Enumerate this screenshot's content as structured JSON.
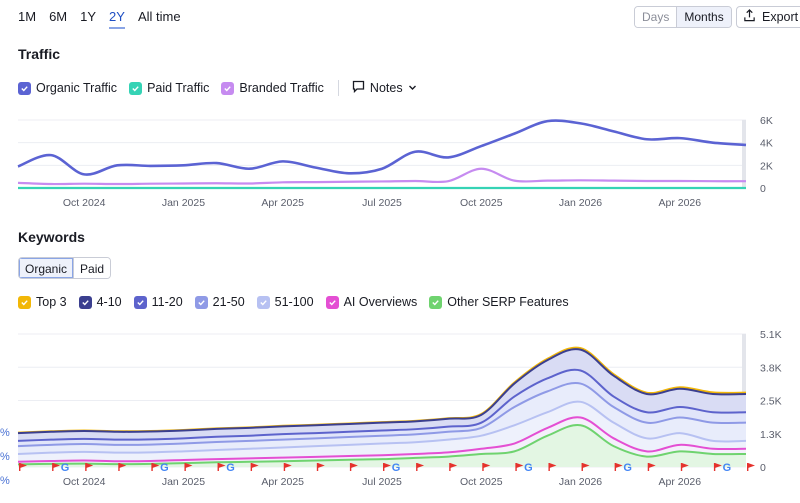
{
  "period_tabs": [
    {
      "label": "1M"
    },
    {
      "label": "6M"
    },
    {
      "label": "1Y"
    },
    {
      "label": "2Y",
      "active": true
    },
    {
      "label": "All time"
    }
  ],
  "view_toggle": {
    "days": "Days",
    "months": "Months"
  },
  "export_label": "Export",
  "traffic": {
    "title": "Traffic",
    "legend": [
      {
        "label": "Organic Traffic",
        "color": "#5b63d3"
      },
      {
        "label": "Paid Traffic",
        "color": "#35d3b5"
      },
      {
        "label": "Branded Traffic",
        "color": "#c68bf0"
      }
    ],
    "notes_label": "Notes"
  },
  "keywords": {
    "title": "Keywords",
    "tabs": {
      "organic": "Organic",
      "paid": "Paid"
    },
    "legend": [
      {
        "label": "Top 3",
        "color": "#f2b707"
      },
      {
        "label": "4-10",
        "color": "#3b3f8f"
      },
      {
        "label": "11-20",
        "color": "#5d63cc"
      },
      {
        "label": "21-50",
        "color": "#8f9ae6"
      },
      {
        "label": "51-100",
        "color": "#b7c1f2"
      },
      {
        "label": "AI Overviews",
        "color": "#e44fd3"
      },
      {
        "label": "Other SERP Features",
        "color": "#6fd36f"
      }
    ]
  },
  "chart_data": [
    {
      "type": "line",
      "title": "Traffic",
      "x": [
        "2024-08",
        "2024-09",
        "2024-10",
        "2024-11",
        "2024-12",
        "2025-01",
        "2025-02",
        "2025-03",
        "2025-04",
        "2025-05",
        "2025-06",
        "2025-07",
        "2025-08",
        "2025-09",
        "2025-10",
        "2025-11",
        "2025-12",
        "2026-01",
        "2026-02",
        "2026-03",
        "2026-04",
        "2026-05",
        "2026-06"
      ],
      "x_tick_labels": [
        "Oct 2024",
        "Jan 2025",
        "Apr 2025",
        "Jul 2025",
        "Oct 2025",
        "Jan 2026",
        "Apr 2026"
      ],
      "y_tick_labels": [
        "6K",
        "4K",
        "2K",
        "0"
      ],
      "ylim": [
        0,
        6000
      ],
      "series": [
        {
          "name": "Organic Traffic",
          "color": "#5b63d3",
          "values": [
            1900,
            2900,
            1200,
            2000,
            1950,
            2000,
            2200,
            1700,
            2350,
            1800,
            1300,
            1700,
            3200,
            2700,
            3700,
            4800,
            5900,
            5700,
            5000,
            4300,
            4400,
            4000,
            3800
          ]
        },
        {
          "name": "Paid Traffic",
          "color": "#35d3b5",
          "values": [
            0,
            0,
            0,
            0,
            0,
            0,
            0,
            0,
            0,
            0,
            0,
            0,
            0,
            0,
            0,
            0,
            0,
            0,
            0,
            0,
            0,
            0,
            0
          ]
        },
        {
          "name": "Branded Traffic",
          "color": "#c68bf0",
          "values": [
            450,
            350,
            380,
            350,
            380,
            400,
            420,
            400,
            500,
            520,
            550,
            580,
            620,
            600,
            1700,
            650,
            650,
            680,
            650,
            620,
            620,
            600,
            600
          ]
        }
      ]
    },
    {
      "type": "area",
      "title": "Keywords",
      "x": [
        "2024-08",
        "2024-09",
        "2024-10",
        "2024-11",
        "2024-12",
        "2025-01",
        "2025-02",
        "2025-03",
        "2025-04",
        "2025-05",
        "2025-06",
        "2025-07",
        "2025-08",
        "2025-09",
        "2025-10",
        "2025-11",
        "2025-12",
        "2026-01",
        "2026-02",
        "2026-03",
        "2026-04",
        "2026-05",
        "2026-06"
      ],
      "x_tick_labels": [
        "Oct 2024",
        "Jan 2025",
        "Apr 2025",
        "Jul 2025",
        "Oct 2025",
        "Jan 2026",
        "Apr 2026"
      ],
      "y_tick_labels": [
        "5.1K",
        "3.8K",
        "2.5K",
        "1.3K",
        "0"
      ],
      "ylim": [
        0,
        5100
      ],
      "stacked_cumulative": true,
      "series": [
        {
          "name": "Other SERP Features",
          "color": "#6fd36f",
          "values": [
            100,
            120,
            130,
            110,
            120,
            150,
            180,
            200,
            220,
            250,
            280,
            300,
            350,
            400,
            500,
            600,
            1200,
            1600,
            800,
            400,
            600,
            500,
            500
          ]
        },
        {
          "name": "AI Overviews",
          "color": "#e44fd3",
          "values": [
            200,
            230,
            250,
            220,
            230,
            270,
            300,
            330,
            360,
            390,
            420,
            450,
            500,
            560,
            700,
            900,
            1500,
            1900,
            1100,
            600,
            850,
            700,
            700
          ]
        },
        {
          "name": "51-100",
          "color": "#b7c1f2",
          "values": [
            500,
            550,
            580,
            550,
            560,
            600,
            650,
            700,
            750,
            800,
            850,
            900,
            950,
            1050,
            1200,
            1600,
            2100,
            2500,
            1700,
            1100,
            1300,
            1000,
            1000
          ]
        },
        {
          "name": "21-50",
          "color": "#8f9ae6",
          "values": [
            800,
            850,
            880,
            850,
            860,
            900,
            960,
            1000,
            1050,
            1100,
            1150,
            1200,
            1250,
            1350,
            1500,
            2300,
            2900,
            3200,
            2300,
            1700,
            1900,
            1700,
            1700
          ]
        },
        {
          "name": "11-20",
          "color": "#5d63cc",
          "values": [
            1000,
            1050,
            1080,
            1050,
            1060,
            1100,
            1160,
            1200,
            1260,
            1300,
            1350,
            1400,
            1450,
            1550,
            1700,
            2700,
            3400,
            3700,
            2700,
            2100,
            2300,
            2100,
            2100
          ]
        },
        {
          "name": "4-10",
          "color": "#3b3f8f",
          "values": [
            1300,
            1350,
            1380,
            1350,
            1360,
            1400,
            1460,
            1500,
            1560,
            1600,
            1650,
            1700,
            1750,
            1850,
            2000,
            3200,
            4100,
            4500,
            3500,
            2800,
            3000,
            2800,
            2800
          ]
        },
        {
          "name": "Top 3",
          "color": "#f2b707",
          "values": [
            1320,
            1370,
            1400,
            1370,
            1380,
            1420,
            1480,
            1520,
            1580,
            1620,
            1670,
            1720,
            1770,
            1870,
            2030,
            3240,
            4150,
            4560,
            3560,
            2850,
            3060,
            2860,
            2850
          ]
        }
      ],
      "annotations": {
        "google_updates": [
          "2024-09",
          "2024-12",
          "2025-02",
          "2025-07",
          "2025-11",
          "2026-02",
          "2026-05"
        ],
        "flags": [
          "2024-08",
          "2024-09",
          "2024-10",
          "2024-11",
          "2024-12",
          "2025-01",
          "2025-02",
          "2025-03",
          "2025-04",
          "2025-05",
          "2025-06",
          "2025-07",
          "2025-08",
          "2025-09",
          "2025-10",
          "2025-11",
          "2025-12",
          "2026-01",
          "2026-02",
          "2026-03",
          "2026-04",
          "2026-05",
          "2026-06"
        ]
      }
    }
  ],
  "left_edge_marks": [
    "%",
    "%",
    "%"
  ]
}
